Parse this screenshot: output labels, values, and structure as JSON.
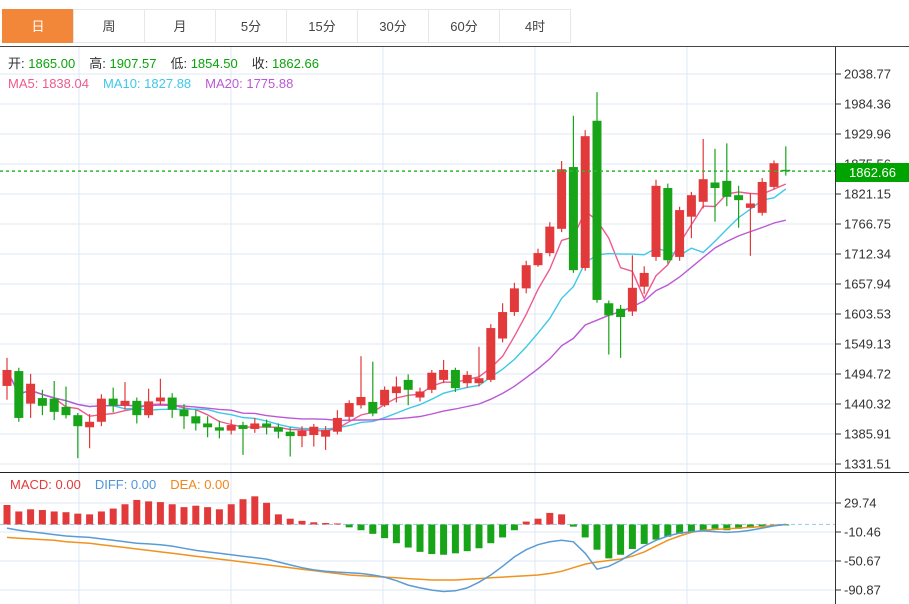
{
  "tabs": [
    {
      "id": "day",
      "label": "日",
      "active": true
    },
    {
      "id": "week",
      "label": "周",
      "active": false
    },
    {
      "id": "month",
      "label": "月",
      "active": false
    },
    {
      "id": "5min",
      "label": "5分",
      "active": false
    },
    {
      "id": "15min",
      "label": "15分",
      "active": false
    },
    {
      "id": "30min",
      "label": "30分",
      "active": false
    },
    {
      "id": "60min",
      "label": "60分",
      "active": false
    },
    {
      "id": "4hour",
      "label": "4时",
      "active": false
    }
  ],
  "ohlc": {
    "items": [
      {
        "id": "open",
        "label": "开:",
        "value": "1865.00"
      },
      {
        "id": "high",
        "label": "高:",
        "value": "1907.57"
      },
      {
        "id": "low",
        "label": "低:",
        "value": "1854.50"
      },
      {
        "id": "close",
        "label": "收:",
        "value": "1862.66"
      }
    ]
  },
  "ma_row": [
    {
      "id": "ma5",
      "label": "MA5:",
      "value": "1838.04",
      "color": "#ef5a8e"
    },
    {
      "id": "ma10",
      "label": "MA10:",
      "value": "1827.88",
      "color": "#3ec8e8"
    },
    {
      "id": "ma20",
      "label": "MA20:",
      "value": "1775.88",
      "color": "#bb58d6"
    }
  ],
  "macd_row": [
    {
      "id": "macd",
      "label": "MACD:",
      "value": "0.00",
      "color": "#e23b3b"
    },
    {
      "id": "diff",
      "label": "DIFF:",
      "value": "0.00",
      "color": "#4f94d9"
    },
    {
      "id": "dea",
      "label": "DEA:",
      "value": "0.00",
      "color": "#f0861e"
    }
  ],
  "price_label": {
    "value": "1862.66",
    "bg": "#00a400"
  },
  "chart_data": {
    "type": "candlestick+macd",
    "main": {
      "ticks": [
        2038.77,
        1984.36,
        1929.96,
        1875.56,
        1821.15,
        1766.75,
        1712.34,
        1657.94,
        1603.53,
        1549.13,
        1494.72,
        1440.32,
        1385.91,
        1331.51
      ],
      "current_price": 1862.66,
      "ma_periods": [
        5,
        10,
        20
      ],
      "candles_format": [
        "open",
        "close",
        "high",
        "low"
      ],
      "candles": [
        [
          1473,
          1502,
          1524,
          1448
        ],
        [
          1500,
          1415,
          1506,
          1408
        ],
        [
          1441,
          1477,
          1495,
          1415
        ],
        [
          1451,
          1437,
          1466,
          1420
        ],
        [
          1450,
          1426,
          1482,
          1411
        ],
        [
          1435,
          1420,
          1472,
          1414
        ],
        [
          1420,
          1400,
          1424,
          1342
        ],
        [
          1398,
          1408,
          1422,
          1360
        ],
        [
          1408,
          1450,
          1458,
          1400
        ],
        [
          1450,
          1437,
          1470,
          1425
        ],
        [
          1437,
          1446,
          1480,
          1430
        ],
        [
          1446,
          1420,
          1452,
          1405
        ],
        [
          1420,
          1445,
          1468,
          1415
        ],
        [
          1445,
          1452,
          1486,
          1438
        ],
        [
          1452,
          1430,
          1460,
          1415
        ],
        [
          1430,
          1418,
          1440,
          1395
        ],
        [
          1418,
          1405,
          1430,
          1392
        ],
        [
          1405,
          1398,
          1418,
          1380
        ],
        [
          1398,
          1392,
          1410,
          1378
        ],
        [
          1392,
          1402,
          1412,
          1385
        ],
        [
          1402,
          1395,
          1408,
          1348
        ],
        [
          1395,
          1405,
          1415,
          1388
        ],
        [
          1405,
          1398,
          1412,
          1385
        ],
        [
          1398,
          1390,
          1405,
          1378
        ],
        [
          1390,
          1382,
          1398,
          1345
        ],
        [
          1382,
          1392,
          1400,
          1362
        ],
        [
          1384,
          1399,
          1404,
          1363
        ],
        [
          1381,
          1393,
          1400,
          1357
        ],
        [
          1390,
          1415,
          1429,
          1385
        ],
        [
          1417,
          1442,
          1447,
          1410
        ],
        [
          1438,
          1453,
          1527,
          1432
        ],
        [
          1444,
          1423,
          1517,
          1418
        ],
        [
          1438,
          1466,
          1472,
          1435
        ],
        [
          1460,
          1472,
          1490,
          1443
        ],
        [
          1484,
          1466,
          1494,
          1438
        ],
        [
          1452,
          1463,
          1470,
          1445
        ],
        [
          1466,
          1497,
          1502,
          1460
        ],
        [
          1484,
          1502,
          1520,
          1478
        ],
        [
          1502,
          1469,
          1506,
          1462
        ],
        [
          1478,
          1493,
          1500,
          1470
        ],
        [
          1478,
          1487,
          1544,
          1472
        ],
        [
          1484,
          1578,
          1585,
          1480
        ],
        [
          1559,
          1607,
          1623,
          1552
        ],
        [
          1607,
          1650,
          1660,
          1600
        ],
        [
          1650,
          1692,
          1700,
          1641
        ],
        [
          1692,
          1714,
          1722,
          1689
        ],
        [
          1714,
          1762,
          1770,
          1708
        ],
        [
          1758,
          1866,
          1881,
          1752
        ],
        [
          1870,
          1683,
          1963,
          1678
        ],
        [
          1687,
          1926,
          1937,
          1682
        ],
        [
          1954,
          1629,
          2006,
          1624
        ],
        [
          1623,
          1601,
          1628,
          1530
        ],
        [
          1613,
          1598,
          1620,
          1524
        ],
        [
          1608,
          1651,
          1710,
          1600
        ],
        [
          1653,
          1678,
          1690,
          1640
        ],
        [
          1707,
          1836,
          1847,
          1700
        ],
        [
          1832,
          1701,
          1840,
          1695
        ],
        [
          1707,
          1792,
          1798,
          1700
        ],
        [
          1780,
          1819,
          1825,
          1741
        ],
        [
          1807,
          1848,
          1921,
          1795
        ],
        [
          1842,
          1832,
          1903,
          1771
        ],
        [
          1845,
          1816,
          1913,
          1799
        ],
        [
          1819,
          1810,
          1836,
          1760
        ],
        [
          1796,
          1804,
          1823,
          1709
        ],
        [
          1787,
          1843,
          1850,
          1782
        ],
        [
          1834,
          1877,
          1882,
          1830
        ],
        [
          1865,
          1862.66,
          1907.57,
          1854.5
        ]
      ]
    },
    "macd": {
      "ticks": [
        29.74,
        -10.46,
        -50.67,
        -90.87
      ],
      "bars": [
        27,
        18,
        21,
        20,
        18,
        17,
        15,
        14,
        18,
        22,
        28,
        34,
        32,
        31,
        28,
        24,
        26,
        24,
        21,
        28,
        35,
        39,
        30,
        14,
        8,
        5,
        3,
        2,
        1,
        -4,
        -8,
        -13,
        -19,
        -26,
        -32,
        -38,
        -41,
        -42,
        -40,
        -37,
        -33,
        -26,
        -18,
        -8,
        4,
        8,
        16,
        14,
        -3,
        -18,
        -35,
        -47,
        -42,
        -34,
        -27,
        -21,
        -17,
        -13,
        -10,
        -8,
        -6,
        -8,
        -6,
        -5,
        -4,
        -2,
        -1
      ],
      "diff": [
        -5,
        -8,
        -10,
        -12,
        -14,
        -16,
        -17,
        -18,
        -20,
        -22,
        -24,
        -26,
        -27,
        -28,
        -30,
        -33,
        -36,
        -38,
        -40,
        -42,
        -44,
        -46,
        -48,
        -52,
        -56,
        -60,
        -63,
        -65,
        -66,
        -67,
        -68,
        -70,
        -73,
        -78,
        -84,
        -88,
        -91,
        -93,
        -92,
        -88,
        -80,
        -70,
        -58,
        -45,
        -35,
        -28,
        -24,
        -22,
        -24,
        -40,
        -62,
        -58,
        -50,
        -40,
        -30,
        -22,
        -16,
        -12,
        -10,
        -9,
        -10,
        -11,
        -10,
        -8,
        -5,
        -2,
        0
      ],
      "dea": [
        -18,
        -19,
        -20,
        -21,
        -22,
        -24,
        -25,
        -26,
        -28,
        -30,
        -32,
        -34,
        -36,
        -38,
        -40,
        -42,
        -44,
        -46,
        -48,
        -50,
        -52,
        -54,
        -56,
        -58,
        -60,
        -62,
        -64,
        -66,
        -68,
        -70,
        -71,
        -72,
        -73,
        -74,
        -75,
        -76,
        -77,
        -77,
        -77,
        -76,
        -75,
        -74,
        -73,
        -72,
        -71,
        -70,
        -68,
        -65,
        -60,
        -55,
        -52,
        -50,
        -48,
        -44,
        -38,
        -30,
        -22,
        -16,
        -11,
        -8,
        -7,
        -6,
        -5,
        -4,
        -3,
        -1,
        0
      ]
    },
    "layout": {
      "grid_vertical_x": [
        79,
        231,
        383,
        535,
        687
      ],
      "legend_position": "top-left",
      "grid": true
    },
    "colors": {
      "up": "#e23a3a",
      "down": "#18a418",
      "ma5": "#ef5a8e",
      "ma10": "#3ec8e8",
      "ma20": "#bb58d6",
      "diff_line": "#5b9bd5",
      "dea_line": "#f0921e",
      "grid": "#dce9f6",
      "zero_dash": "#9fd0f0",
      "price_line": "#2db82d",
      "axis": "#333333",
      "tick_text": "#333333"
    }
  }
}
